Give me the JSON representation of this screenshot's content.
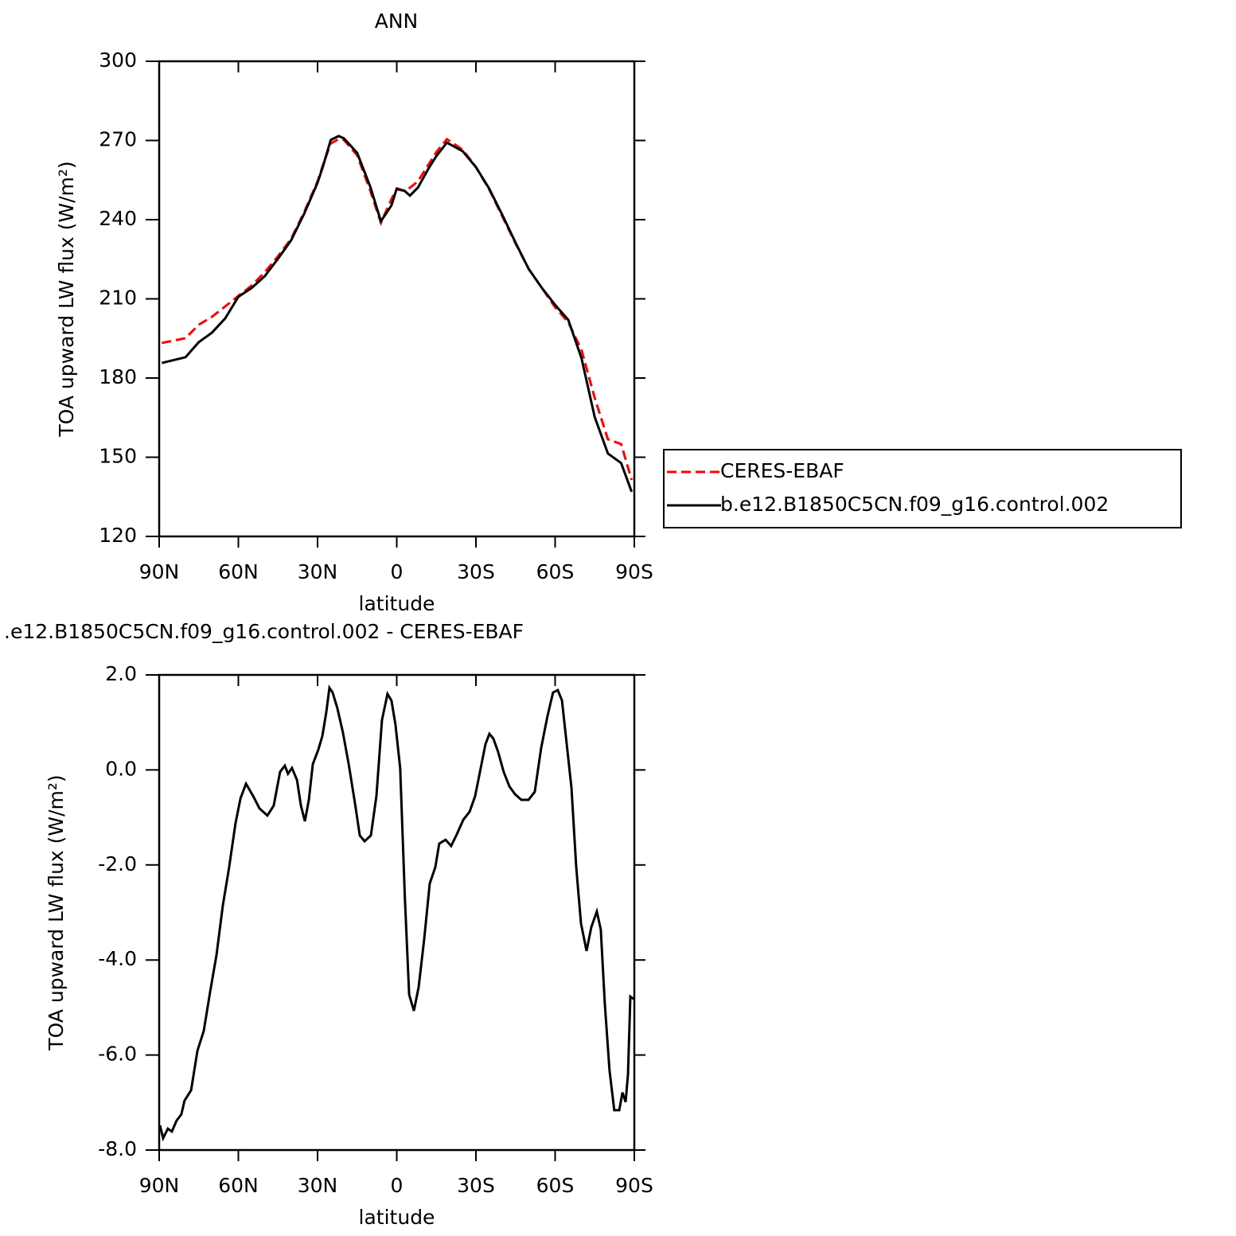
{
  "chart_data": [
    {
      "type": "line",
      "title": "ANN",
      "xlabel": "latitude",
      "ylabel": "TOA upward LW flux (W/m²)",
      "xlim": [
        90,
        -90
      ],
      "xticks": [
        {
          "value": 90,
          "label": "90N"
        },
        {
          "value": 60,
          "label": "60N"
        },
        {
          "value": 30,
          "label": "30N"
        },
        0,
        {
          "value": -30,
          "label": "30S"
        },
        {
          "value": -60,
          "label": "60S"
        },
        {
          "value": -90,
          "label": "90S"
        }
      ],
      "ylim": [
        120,
        300
      ],
      "yticks": [
        120,
        150,
        180,
        210,
        240,
        270,
        300
      ],
      "legend": "right",
      "x": [
        89,
        80,
        75,
        70,
        65,
        60,
        55,
        50,
        45,
        40,
        35,
        30,
        28,
        25,
        22,
        20,
        15,
        10,
        6,
        2,
        0,
        -3,
        -5,
        -8,
        -12,
        -15,
        -19,
        -25,
        -30,
        -35,
        -40,
        -45,
        -50,
        -55,
        -60,
        -65,
        -70,
        -75,
        -80,
        -85,
        -89
      ],
      "series": [
        {
          "name": "CERES-EBAF",
          "color": "#ff0000",
          "dash": true,
          "values": [
            193.3,
            195.1,
            200.2,
            203.2,
            207.1,
            211.1,
            215.0,
            220.1,
            226.1,
            232.8,
            243.0,
            254.5,
            260.5,
            268.9,
            270.5,
            270.2,
            264.4,
            250.9,
            238.8,
            247.8,
            251.5,
            250.9,
            252.1,
            254.5,
            260.8,
            265.6,
            270.5,
            266.5,
            259.9,
            251.5,
            241.2,
            231.0,
            221.3,
            214.1,
            206.8,
            201.1,
            190.6,
            172.5,
            156.8,
            155.0,
            141.4
          ]
        },
        {
          "name": "b.e12.B1850C5CN.f09_g16.control.002",
          "color": "#000000",
          "dash": false,
          "values": [
            185.7,
            187.9,
            193.6,
            197.2,
            202.6,
            210.8,
            214.1,
            218.6,
            225.2,
            232.2,
            242.4,
            254.0,
            260.0,
            270.2,
            271.7,
            270.8,
            265.3,
            252.4,
            239.4,
            245.4,
            251.8,
            250.9,
            249.1,
            252.1,
            259.3,
            264.1,
            269.2,
            265.9,
            259.9,
            251.8,
            241.8,
            231.3,
            221.3,
            214.1,
            207.7,
            202.0,
            187.5,
            165.2,
            151.4,
            147.8,
            136.9
          ]
        }
      ]
    },
    {
      "type": "line",
      "title": ".e12.B1850C5CN.f09_g16.control.002 - CERES-EBAF",
      "xlabel": "latitude",
      "ylabel": "TOA upward LW flux (W/m²)",
      "xlim": [
        90,
        -90
      ],
      "xticks": [
        {
          "value": 90,
          "label": "90N"
        },
        {
          "value": 60,
          "label": "60N"
        },
        {
          "value": 30,
          "label": "30N"
        },
        0,
        {
          "value": -30,
          "label": "30S"
        },
        {
          "value": -60,
          "label": "60S"
        },
        {
          "value": -90,
          "label": "90S"
        }
      ],
      "ylim": [
        -8,
        2
      ],
      "yticks": [
        {
          "value": -8,
          "label": "-8.0"
        },
        {
          "value": -6,
          "label": "-6.0"
        },
        {
          "value": -4,
          "label": "-4.0"
        },
        {
          "value": -2,
          "label": "-2.0"
        },
        {
          "value": 0,
          "label": "0.0"
        },
        {
          "value": 2,
          "label": "2.0"
        }
      ],
      "x": [
        89.7,
        88.5,
        86.7,
        85.2,
        83.4,
        81.6,
        80.4,
        77.9,
        75.5,
        73.1,
        70.7,
        68.3,
        65.9,
        63.5,
        61.1,
        59.2,
        57.1,
        54.4,
        52.0,
        49.0,
        46.6,
        44.2,
        42.4,
        41.2,
        39.7,
        37.8,
        36.3,
        34.8,
        33.3,
        31.8,
        29.7,
        28.2,
        26.7,
        25.5,
        24.3,
        22.5,
        20.4,
        18.2,
        15.8,
        14.0,
        12.2,
        9.8,
        7.7,
        5.6,
        3.5,
        2.0,
        0.5,
        -1.3,
        -3.1,
        -4.7,
        -6.5,
        -8.3,
        -10.4,
        -12.5,
        -14.6,
        -16.1,
        -18.5,
        -20.6,
        -22.8,
        -25.2,
        -27.6,
        -29.7,
        -32.1,
        -33.6,
        -35.1,
        -36.6,
        -38.4,
        -40.5,
        -42.7,
        -44.8,
        -47.2,
        -49.9,
        -52.3,
        -54.7,
        -57.1,
        -59.2,
        -61.0,
        -62.6,
        -64.4,
        -66.2,
        -68.0,
        -69.8,
        -71.9,
        -73.7,
        -75.8,
        -77.3,
        -78.8,
        -80.6,
        -82.4,
        -84.3,
        -85.5,
        -86.7,
        -87.6,
        -88.5,
        -89.7
      ],
      "series": [
        {
          "color": "#000000",
          "dash": false,
          "values": [
            -7.48,
            -7.75,
            -7.55,
            -7.61,
            -7.38,
            -7.25,
            -6.96,
            -6.74,
            -5.91,
            -5.49,
            -4.67,
            -3.9,
            -2.86,
            -2.05,
            -1.13,
            -0.6,
            -0.29,
            -0.55,
            -0.81,
            -0.96,
            -0.75,
            -0.04,
            0.09,
            -0.08,
            0.04,
            -0.21,
            -0.75,
            -1.08,
            -0.63,
            0.12,
            0.43,
            0.71,
            1.21,
            1.73,
            1.63,
            1.3,
            0.79,
            0.12,
            -0.71,
            -1.38,
            -1.5,
            -1.38,
            -0.55,
            1.05,
            1.6,
            1.46,
            0.96,
            0.04,
            -2.72,
            -4.73,
            -5.07,
            -4.57,
            -3.56,
            -2.39,
            -2.05,
            -1.55,
            -1.47,
            -1.6,
            -1.35,
            -1.05,
            -0.88,
            -0.55,
            0.12,
            0.54,
            0.76,
            0.66,
            0.38,
            -0.04,
            -0.35,
            -0.51,
            -0.63,
            -0.63,
            -0.46,
            0.46,
            1.13,
            1.63,
            1.68,
            1.46,
            0.54,
            -0.38,
            -2.05,
            -3.23,
            -3.81,
            -3.31,
            -2.98,
            -3.36,
            -4.9,
            -6.32,
            -7.16,
            -7.16,
            -6.79,
            -6.99,
            -6.41,
            -4.77,
            -4.82
          ]
        }
      ]
    }
  ]
}
